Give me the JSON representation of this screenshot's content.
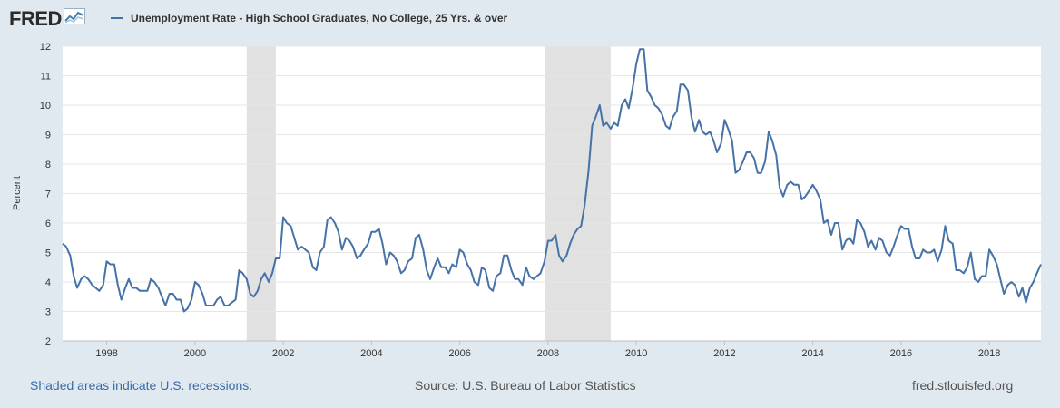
{
  "header": {
    "logo_text": "FRED",
    "legend_label": "Unemployment Rate - High School Graduates, No College, 25 Yrs. & over"
  },
  "footer": {
    "recession_note": "Shaded areas indicate U.S. recessions.",
    "source": "Source: U.S. Bureau of Labor Statistics",
    "site": "fred.stlouisfed.org"
  },
  "colors": {
    "line": "#4572a7",
    "recession": "#e1e1e1",
    "background": "#e1e9f0",
    "plot": "#ffffff"
  },
  "chart_data": {
    "type": "line",
    "title": "",
    "xlabel": "",
    "ylabel": "Percent",
    "xlim": [
      1997.0,
      2019.17
    ],
    "ylim": [
      2,
      12
    ],
    "yticks": [
      2,
      3,
      4,
      5,
      6,
      7,
      8,
      9,
      10,
      11,
      12
    ],
    "xticks": [
      1998,
      2000,
      2002,
      2004,
      2006,
      2008,
      2010,
      2012,
      2014,
      2016,
      2018
    ],
    "recessions": [
      [
        2001.17,
        2001.83
      ],
      [
        2007.92,
        2009.42
      ]
    ],
    "grid": true,
    "legend": "top-left",
    "series": [
      {
        "name": "Unemployment Rate - High School Graduates, No College, 25 Yrs. & over",
        "points": [
          [
            1997.0,
            5.3
          ],
          [
            1997.08,
            5.2
          ],
          [
            1997.17,
            4.9
          ],
          [
            1997.25,
            4.2
          ],
          [
            1997.33,
            3.8
          ],
          [
            1997.42,
            4.1
          ],
          [
            1997.5,
            4.2
          ],
          [
            1997.58,
            4.1
          ],
          [
            1997.67,
            3.9
          ],
          [
            1997.75,
            3.8
          ],
          [
            1997.83,
            3.7
          ],
          [
            1997.92,
            3.9
          ],
          [
            1998.0,
            4.7
          ],
          [
            1998.08,
            4.6
          ],
          [
            1998.17,
            4.6
          ],
          [
            1998.25,
            3.9
          ],
          [
            1998.33,
            3.4
          ],
          [
            1998.42,
            3.8
          ],
          [
            1998.5,
            4.1
          ],
          [
            1998.58,
            3.8
          ],
          [
            1998.67,
            3.8
          ],
          [
            1998.75,
            3.7
          ],
          [
            1998.83,
            3.7
          ],
          [
            1998.92,
            3.7
          ],
          [
            1999.0,
            4.1
          ],
          [
            1999.08,
            4.0
          ],
          [
            1999.17,
            3.8
          ],
          [
            1999.25,
            3.5
          ],
          [
            1999.33,
            3.2
          ],
          [
            1999.42,
            3.6
          ],
          [
            1999.5,
            3.6
          ],
          [
            1999.58,
            3.4
          ],
          [
            1999.67,
            3.4
          ],
          [
            1999.75,
            3.0
          ],
          [
            1999.83,
            3.1
          ],
          [
            1999.92,
            3.4
          ],
          [
            2000.0,
            4.0
          ],
          [
            2000.08,
            3.9
          ],
          [
            2000.17,
            3.6
          ],
          [
            2000.25,
            3.2
          ],
          [
            2000.33,
            3.2
          ],
          [
            2000.42,
            3.2
          ],
          [
            2000.5,
            3.4
          ],
          [
            2000.58,
            3.5
          ],
          [
            2000.67,
            3.2
          ],
          [
            2000.75,
            3.2
          ],
          [
            2000.83,
            3.3
          ],
          [
            2000.92,
            3.4
          ],
          [
            2001.0,
            4.4
          ],
          [
            2001.08,
            4.3
          ],
          [
            2001.17,
            4.1
          ],
          [
            2001.25,
            3.6
          ],
          [
            2001.33,
            3.5
          ],
          [
            2001.42,
            3.7
          ],
          [
            2001.5,
            4.1
          ],
          [
            2001.58,
            4.3
          ],
          [
            2001.67,
            4.0
          ],
          [
            2001.75,
            4.3
          ],
          [
            2001.83,
            4.8
          ],
          [
            2001.92,
            4.8
          ],
          [
            2002.0,
            6.2
          ],
          [
            2002.08,
            6.0
          ],
          [
            2002.17,
            5.9
          ],
          [
            2002.25,
            5.5
          ],
          [
            2002.33,
            5.1
          ],
          [
            2002.42,
            5.2
          ],
          [
            2002.5,
            5.1
          ],
          [
            2002.58,
            5.0
          ],
          [
            2002.67,
            4.5
          ],
          [
            2002.75,
            4.4
          ],
          [
            2002.83,
            5.0
          ],
          [
            2002.92,
            5.2
          ],
          [
            2003.0,
            6.1
          ],
          [
            2003.08,
            6.2
          ],
          [
            2003.17,
            6.0
          ],
          [
            2003.25,
            5.7
          ],
          [
            2003.33,
            5.1
          ],
          [
            2003.42,
            5.5
          ],
          [
            2003.5,
            5.4
          ],
          [
            2003.58,
            5.2
          ],
          [
            2003.67,
            4.8
          ],
          [
            2003.75,
            4.9
          ],
          [
            2003.83,
            5.1
          ],
          [
            2003.92,
            5.3
          ],
          [
            2004.0,
            5.7
          ],
          [
            2004.08,
            5.7
          ],
          [
            2004.17,
            5.8
          ],
          [
            2004.25,
            5.3
          ],
          [
            2004.33,
            4.6
          ],
          [
            2004.42,
            5.0
          ],
          [
            2004.5,
            4.9
          ],
          [
            2004.58,
            4.7
          ],
          [
            2004.67,
            4.3
          ],
          [
            2004.75,
            4.4
          ],
          [
            2004.83,
            4.7
          ],
          [
            2004.92,
            4.8
          ],
          [
            2005.0,
            5.5
          ],
          [
            2005.08,
            5.6
          ],
          [
            2005.17,
            5.1
          ],
          [
            2005.25,
            4.4
          ],
          [
            2005.33,
            4.1
          ],
          [
            2005.42,
            4.5
          ],
          [
            2005.5,
            4.8
          ],
          [
            2005.58,
            4.5
          ],
          [
            2005.67,
            4.5
          ],
          [
            2005.75,
            4.3
          ],
          [
            2005.83,
            4.6
          ],
          [
            2005.92,
            4.5
          ],
          [
            2006.0,
            5.1
          ],
          [
            2006.08,
            5.0
          ],
          [
            2006.17,
            4.6
          ],
          [
            2006.25,
            4.4
          ],
          [
            2006.33,
            4.0
          ],
          [
            2006.42,
            3.9
          ],
          [
            2006.5,
            4.5
          ],
          [
            2006.58,
            4.4
          ],
          [
            2006.67,
            3.8
          ],
          [
            2006.75,
            3.7
          ],
          [
            2006.83,
            4.2
          ],
          [
            2006.92,
            4.3
          ],
          [
            2007.0,
            4.9
          ],
          [
            2007.08,
            4.9
          ],
          [
            2007.17,
            4.4
          ],
          [
            2007.25,
            4.1
          ],
          [
            2007.33,
            4.1
          ],
          [
            2007.42,
            3.9
          ],
          [
            2007.5,
            4.5
          ],
          [
            2007.58,
            4.2
          ],
          [
            2007.67,
            4.1
          ],
          [
            2007.75,
            4.2
          ],
          [
            2007.83,
            4.3
          ],
          [
            2007.92,
            4.7
          ],
          [
            2008.0,
            5.4
          ],
          [
            2008.08,
            5.4
          ],
          [
            2008.17,
            5.6
          ],
          [
            2008.25,
            4.9
          ],
          [
            2008.33,
            4.7
          ],
          [
            2008.42,
            4.9
          ],
          [
            2008.5,
            5.3
          ],
          [
            2008.58,
            5.6
          ],
          [
            2008.67,
            5.8
          ],
          [
            2008.75,
            5.9
          ],
          [
            2008.83,
            6.6
          ],
          [
            2008.92,
            7.8
          ],
          [
            2009.0,
            9.3
          ],
          [
            2009.08,
            9.6
          ],
          [
            2009.17,
            10.0
          ],
          [
            2009.25,
            9.3
          ],
          [
            2009.33,
            9.4
          ],
          [
            2009.42,
            9.2
          ],
          [
            2009.5,
            9.4
          ],
          [
            2009.58,
            9.3
          ],
          [
            2009.67,
            10.0
          ],
          [
            2009.75,
            10.2
          ],
          [
            2009.83,
            9.9
          ],
          [
            2009.92,
            10.6
          ],
          [
            2010.0,
            11.4
          ],
          [
            2010.08,
            11.9
          ],
          [
            2010.17,
            11.9
          ],
          [
            2010.25,
            10.5
          ],
          [
            2010.33,
            10.3
          ],
          [
            2010.42,
            10.0
          ],
          [
            2010.5,
            9.9
          ],
          [
            2010.58,
            9.7
          ],
          [
            2010.67,
            9.3
          ],
          [
            2010.75,
            9.2
          ],
          [
            2010.83,
            9.6
          ],
          [
            2010.92,
            9.8
          ],
          [
            2011.0,
            10.7
          ],
          [
            2011.08,
            10.7
          ],
          [
            2011.17,
            10.5
          ],
          [
            2011.25,
            9.6
          ],
          [
            2011.33,
            9.1
          ],
          [
            2011.42,
            9.5
          ],
          [
            2011.5,
            9.1
          ],
          [
            2011.58,
            9.0
          ],
          [
            2011.67,
            9.1
          ],
          [
            2011.75,
            8.8
          ],
          [
            2011.83,
            8.4
          ],
          [
            2011.92,
            8.7
          ],
          [
            2012.0,
            9.5
          ],
          [
            2012.08,
            9.2
          ],
          [
            2012.17,
            8.8
          ],
          [
            2012.25,
            7.7
          ],
          [
            2012.33,
            7.8
          ],
          [
            2012.42,
            8.1
          ],
          [
            2012.5,
            8.4
          ],
          [
            2012.58,
            8.4
          ],
          [
            2012.67,
            8.2
          ],
          [
            2012.75,
            7.7
          ],
          [
            2012.83,
            7.7
          ],
          [
            2012.92,
            8.1
          ],
          [
            2013.0,
            9.1
          ],
          [
            2013.08,
            8.8
          ],
          [
            2013.17,
            8.3
          ],
          [
            2013.25,
            7.2
          ],
          [
            2013.33,
            6.9
          ],
          [
            2013.42,
            7.3
          ],
          [
            2013.5,
            7.4
          ],
          [
            2013.58,
            7.3
          ],
          [
            2013.67,
            7.3
          ],
          [
            2013.75,
            6.8
          ],
          [
            2013.83,
            6.9
          ],
          [
            2013.92,
            7.1
          ],
          [
            2014.0,
            7.3
          ],
          [
            2014.08,
            7.1
          ],
          [
            2014.17,
            6.8
          ],
          [
            2014.25,
            6.0
          ],
          [
            2014.33,
            6.1
          ],
          [
            2014.42,
            5.6
          ],
          [
            2014.5,
            6.0
          ],
          [
            2014.58,
            6.0
          ],
          [
            2014.67,
            5.1
          ],
          [
            2014.75,
            5.4
          ],
          [
            2014.83,
            5.5
          ],
          [
            2014.92,
            5.3
          ],
          [
            2015.0,
            6.1
          ],
          [
            2015.08,
            6.0
          ],
          [
            2015.17,
            5.7
          ],
          [
            2015.25,
            5.2
          ],
          [
            2015.33,
            5.4
          ],
          [
            2015.42,
            5.1
          ],
          [
            2015.5,
            5.5
          ],
          [
            2015.58,
            5.4
          ],
          [
            2015.67,
            5.0
          ],
          [
            2015.75,
            4.9
          ],
          [
            2015.83,
            5.2
          ],
          [
            2015.92,
            5.6
          ],
          [
            2016.0,
            5.9
          ],
          [
            2016.08,
            5.8
          ],
          [
            2016.17,
            5.8
          ],
          [
            2016.25,
            5.2
          ],
          [
            2016.33,
            4.8
          ],
          [
            2016.42,
            4.8
          ],
          [
            2016.5,
            5.1
          ],
          [
            2016.58,
            5.0
          ],
          [
            2016.67,
            5.0
          ],
          [
            2016.75,
            5.1
          ],
          [
            2016.83,
            4.7
          ],
          [
            2016.92,
            5.1
          ],
          [
            2017.0,
            5.9
          ],
          [
            2017.08,
            5.4
          ],
          [
            2017.17,
            5.3
          ],
          [
            2017.25,
            4.4
          ],
          [
            2017.33,
            4.4
          ],
          [
            2017.42,
            4.3
          ],
          [
            2017.5,
            4.5
          ],
          [
            2017.58,
            5.0
          ],
          [
            2017.67,
            4.1
          ],
          [
            2017.75,
            4.0
          ],
          [
            2017.83,
            4.2
          ],
          [
            2017.92,
            4.2
          ],
          [
            2018.0,
            5.1
          ],
          [
            2018.08,
            4.9
          ],
          [
            2018.17,
            4.6
          ],
          [
            2018.25,
            4.1
          ],
          [
            2018.33,
            3.6
          ],
          [
            2018.42,
            3.9
          ],
          [
            2018.5,
            4.0
          ],
          [
            2018.58,
            3.9
          ],
          [
            2018.67,
            3.5
          ],
          [
            2018.75,
            3.8
          ],
          [
            2018.83,
            3.3
          ],
          [
            2018.92,
            3.8
          ],
          [
            2019.0,
            4.0
          ],
          [
            2019.08,
            4.3
          ],
          [
            2019.17,
            4.6
          ]
        ]
      }
    ]
  }
}
